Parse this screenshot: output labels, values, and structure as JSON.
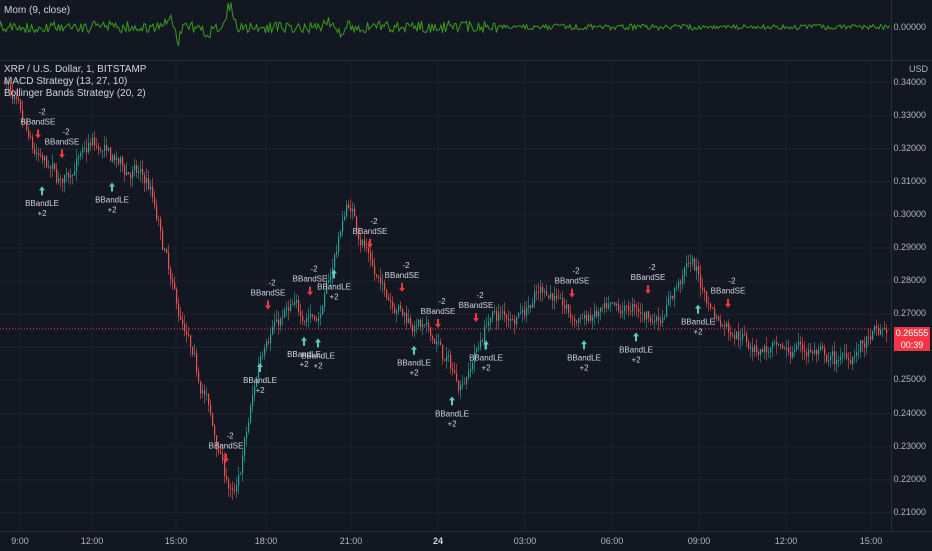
{
  "momentum": {
    "legend": "Mom (9, close)",
    "axis_label": "0.00000",
    "color": "#3c9a1f"
  },
  "chart": {
    "symbol": "XRP / U.S. Dollar, 1, BITSTAMP",
    "strategy1": "MACD Strategy (13, 27, 10)",
    "strategy2": "Bollinger Bands Strategy (20, 2)",
    "currency": "USD",
    "last_price": "0.26555",
    "countdown": "00:39",
    "price_labels": [
      "0.34000",
      "0.33000",
      "0.32000",
      "0.31000",
      "0.30000",
      "0.29000",
      "0.28000",
      "0.27000",
      "0.26000",
      "0.25000",
      "0.24000",
      "0.23000",
      "0.22000",
      "0.21000"
    ],
    "time_labels": [
      "9:00",
      "12:00",
      "15:00",
      "18:00",
      "21:00",
      "24",
      "03:00",
      "06:00",
      "09:00",
      "12:00",
      "15:00"
    ],
    "colors": {
      "up": "#26a69a",
      "down": "#ef5350",
      "le": "#5fc9c2",
      "se": "#f23645",
      "bg": "#131722"
    }
  },
  "chart_data": {
    "type": "candlestick",
    "x_range": [
      "09:00",
      "15:00"
    ],
    "ylim": [
      0.205,
      0.35
    ],
    "approx_path": [
      [
        "09:00",
        0.34
      ],
      [
        "10:00",
        0.318
      ],
      [
        "11:00",
        0.31
      ],
      [
        "12:00",
        0.322
      ],
      [
        "13:00",
        0.315
      ],
      [
        "14:00",
        0.31
      ],
      [
        "15:00",
        0.272
      ],
      [
        "16:00",
        0.245
      ],
      [
        "16:30",
        0.212
      ],
      [
        "17:00",
        0.262
      ],
      [
        "18:00",
        0.272
      ],
      [
        "19:00",
        0.268
      ],
      [
        "20:00",
        0.305
      ],
      [
        "21:00",
        0.28
      ],
      [
        "22:00",
        0.27
      ],
      [
        "23:00",
        0.263
      ],
      [
        "24:00",
        0.248
      ],
      [
        "01:00",
        0.27
      ],
      [
        "02:00",
        0.27
      ],
      [
        "03:00",
        0.278
      ],
      [
        "04:00",
        0.268
      ],
      [
        "05:00",
        0.27
      ],
      [
        "06:00",
        0.272
      ],
      [
        "07:00",
        0.268
      ],
      [
        "08:00",
        0.287
      ],
      [
        "09:00",
        0.268
      ],
      [
        "10:00",
        0.262
      ],
      [
        "11:00",
        0.258
      ],
      [
        "12:00",
        0.26
      ],
      [
        "13:00",
        0.255
      ],
      [
        "14:00",
        0.26
      ],
      [
        "15:00",
        0.266
      ]
    ],
    "signals": [
      {
        "type": "BBandSE",
        "qty": "-2"
      },
      {
        "type": "BBandLE",
        "qty": "+2"
      },
      {
        "type": "BBandSE",
        "qty": "-2"
      },
      {
        "type": "BBandLE",
        "qty": "+2"
      },
      {
        "type": "BBandSE",
        "qty": "-2"
      },
      {
        "type": "BBandLE",
        "qty": "+2"
      },
      {
        "type": "BBandSE",
        "qty": "-2"
      },
      {
        "type": "BBandLE",
        "qty": "+2"
      },
      {
        "type": "BBandSE",
        "qty": "-2"
      },
      {
        "type": "BBandLE",
        "qty": "+2"
      },
      {
        "type": "BBandSE",
        "qty": "-2"
      },
      {
        "type": "BBandLE",
        "qty": "+2"
      },
      {
        "type": "BBandSE",
        "qty": "-2"
      },
      {
        "type": "BBandLE",
        "qty": "+2"
      },
      {
        "type": "BBandSE",
        "qty": "-2"
      },
      {
        "type": "BBandLE",
        "qty": "+2"
      },
      {
        "type": "BBandSE",
        "qty": "-2"
      },
      {
        "type": "BBandLE",
        "qty": "+2"
      },
      {
        "type": "BBandSE",
        "qty": "-2"
      },
      {
        "type": "BBandLE",
        "qty": "+2"
      },
      {
        "type": "BBandSE",
        "qty": "-2"
      },
      {
        "type": "BBandLE",
        "qty": "+2"
      },
      {
        "type": "BBandSE",
        "qty": "-2"
      },
      {
        "type": "BBandLE",
        "qty": "+2"
      }
    ]
  }
}
